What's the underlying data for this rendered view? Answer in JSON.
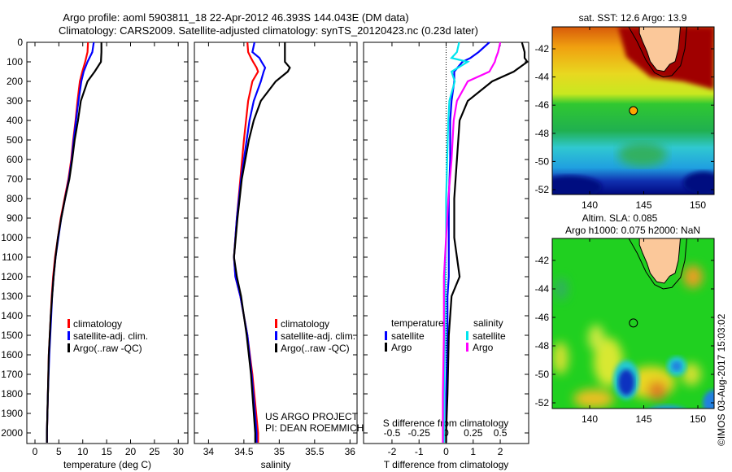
{
  "title": {
    "line1": "Argo profile: aoml 5903811_18 22-Apr-2012 46.393S 144.043E (DM data)",
    "line2": "Climatology: CARS2009. Satellite-adjusted climatology: synTS_20120423.nc (0.23d later)"
  },
  "colors": {
    "climatology": "#ff0000",
    "satellite": "#0000ff",
    "argo": "#000000",
    "s_satellite": "#00e5ee",
    "s_argo": "#ff00ff"
  },
  "depth_ticks": [
    "0",
    "100",
    "200",
    "300",
    "400",
    "500",
    "600",
    "700",
    "800",
    "900",
    "1000",
    "1100",
    "1200",
    "1300",
    "1400",
    "1500",
    "1600",
    "1700",
    "1800",
    "1900",
    "2000"
  ],
  "chart_data": [
    {
      "type": "line",
      "xlabel": "temperature (deg C)",
      "ylabel": "depth",
      "xlim": [
        -1.7,
        32
      ],
      "ylim": [
        2054,
        0
      ],
      "xticks": [
        "0",
        "5",
        "10",
        "15",
        "20",
        "25",
        "30"
      ],
      "legend": [
        "climatology",
        "satellite-adj. clim.",
        "Argo(..raw -QC)"
      ],
      "legend_position": "lower-middle",
      "depth": [
        0,
        50,
        100,
        150,
        200,
        300,
        400,
        500,
        600,
        700,
        800,
        900,
        1000,
        1100,
        1200,
        1300,
        1400,
        1600,
        1800,
        2000,
        2050
      ],
      "series": [
        {
          "name": "climatology",
          "values": [
            11.1,
            11.0,
            10.5,
            9.9,
            9.4,
            8.9,
            8.5,
            8.0,
            7.6,
            7.0,
            6.2,
            5.4,
            4.8,
            4.2,
            3.8,
            3.5,
            3.3,
            2.9,
            2.7,
            2.5,
            2.5
          ]
        },
        {
          "name": "satellite-adj. clim.",
          "values": [
            12.3,
            12.0,
            11.0,
            10.2,
            9.7,
            9.1,
            8.6,
            8.1,
            7.7,
            7.1,
            6.3,
            5.5,
            4.9,
            4.3,
            3.9,
            3.6,
            3.4,
            3.0,
            2.7,
            2.5,
            2.5
          ]
        },
        {
          "name": "Argo(..raw -QC)",
          "values": [
            13.9,
            13.9,
            13.8,
            12.5,
            11.0,
            9.6,
            9.0,
            8.3,
            7.8,
            7.2,
            6.3,
            5.5,
            4.8,
            4.3,
            3.9,
            3.6,
            3.3,
            2.9,
            2.7,
            2.5,
            2.5
          ]
        }
      ]
    },
    {
      "type": "line",
      "xlabel": "salinity",
      "xlim": [
        33.8,
        36.1
      ],
      "ylim": [
        2054,
        0
      ],
      "xticks": [
        "34",
        "34.5",
        "35",
        "35.5",
        "36"
      ],
      "legend": [
        "climatology",
        "satellite-adj. clim.",
        "Argo(..raw -QC)"
      ],
      "annotation": [
        "US ARGO PROJECT",
        "PI: DEAN ROEMMICH"
      ],
      "depth": [
        0,
        50,
        80,
        100,
        130,
        150,
        200,
        300,
        400,
        500,
        700,
        900,
        1100,
        1200,
        1300,
        1500,
        1700,
        2000,
        2050
      ],
      "series": [
        {
          "name": "climatology",
          "values": [
            34.55,
            34.56,
            34.6,
            34.63,
            34.68,
            34.7,
            34.62,
            34.56,
            34.53,
            34.5,
            34.45,
            34.4,
            34.36,
            34.38,
            34.45,
            34.55,
            34.62,
            34.7,
            34.7
          ]
        },
        {
          "name": "satellite-adj. clim.",
          "values": [
            34.65,
            34.62,
            34.72,
            34.75,
            34.8,
            34.78,
            34.74,
            34.64,
            34.58,
            34.54,
            34.46,
            34.4,
            34.36,
            34.38,
            34.45,
            34.55,
            34.61,
            34.68,
            34.68
          ]
        },
        {
          "name": "Argo(..raw -QC)",
          "values": [
            35.08,
            35.08,
            35.08,
            35.08,
            35.15,
            35.12,
            34.95,
            34.74,
            34.64,
            34.57,
            34.47,
            34.41,
            34.36,
            34.4,
            34.46,
            34.54,
            34.6,
            34.66,
            34.66
          ]
        }
      ]
    },
    {
      "type": "line",
      "xlabel": "T difference from climatology",
      "x2label": "S difference from climatology",
      "xlim": [
        -3.05,
        3.05
      ],
      "x2lim": [
        -0.7625,
        0.7625
      ],
      "ylim": [
        2054,
        0
      ],
      "xticks": [
        "-2",
        "-1",
        "0",
        "1",
        "2"
      ],
      "x2ticks": [
        "-0.5",
        "-0.25",
        "0",
        "0.25",
        "0.5"
      ],
      "legend_headers": [
        "temperature",
        "salinity"
      ],
      "legend": [
        "satellite",
        "Argo",
        "satellite",
        "Argo"
      ],
      "depth": [
        0,
        50,
        80,
        100,
        150,
        200,
        300,
        400,
        600,
        800,
        1000,
        1200,
        1300,
        1500,
        1800,
        2000,
        2050
      ],
      "series": [
        {
          "name": "T satellite",
          "axis": "T",
          "values": [
            1.6,
            1.2,
            0.9,
            0.6,
            0.3,
            0.3,
            0.2,
            0.15,
            0.15,
            0.1,
            0.1,
            0.1,
            0.05,
            0.05,
            0.0,
            0.0,
            0.0
          ]
        },
        {
          "name": "T Argo",
          "axis": "T",
          "values": [
            2.8,
            2.9,
            2.9,
            3.0,
            2.5,
            1.7,
            0.8,
            0.5,
            0.4,
            0.3,
            0.3,
            0.5,
            0.2,
            0.1,
            0.05,
            0.0,
            0.0
          ]
        },
        {
          "name": "S satellite",
          "axis": "S",
          "values": [
            0.12,
            0.1,
            0.05,
            0.2,
            0.05,
            0.08,
            0.03,
            0.02,
            0.01,
            0.0,
            0.0,
            -0.01,
            -0.01,
            -0.01,
            -0.02,
            -0.02,
            -0.02
          ]
        },
        {
          "name": "S Argo",
          "axis": "S",
          "values": [
            0.5,
            0.48,
            0.46,
            0.45,
            0.4,
            0.2,
            0.1,
            0.07,
            0.05,
            0.02,
            0.0,
            -0.02,
            -0.02,
            -0.02,
            -0.03,
            -0.03,
            -0.03
          ]
        }
      ]
    }
  ],
  "maps": {
    "sst": {
      "title": "sat. SST: 12.6 Argo: 13.9"
    },
    "sla": {
      "title1": "Altim. SLA: 0.085",
      "title2": "Argo h1000: 0.075 h2000: NaN"
    },
    "lon_ticks": [
      "140",
      "145",
      "150"
    ],
    "lat_ticks": [
      "-42",
      "-44",
      "-46",
      "-48",
      "-50",
      "-52"
    ],
    "float_position": {
      "lat": -46.393,
      "lon": 144.043
    },
    "marker_color": "#ffa500"
  },
  "credit": "©IMOS 03-Aug-2017 15:03:02"
}
